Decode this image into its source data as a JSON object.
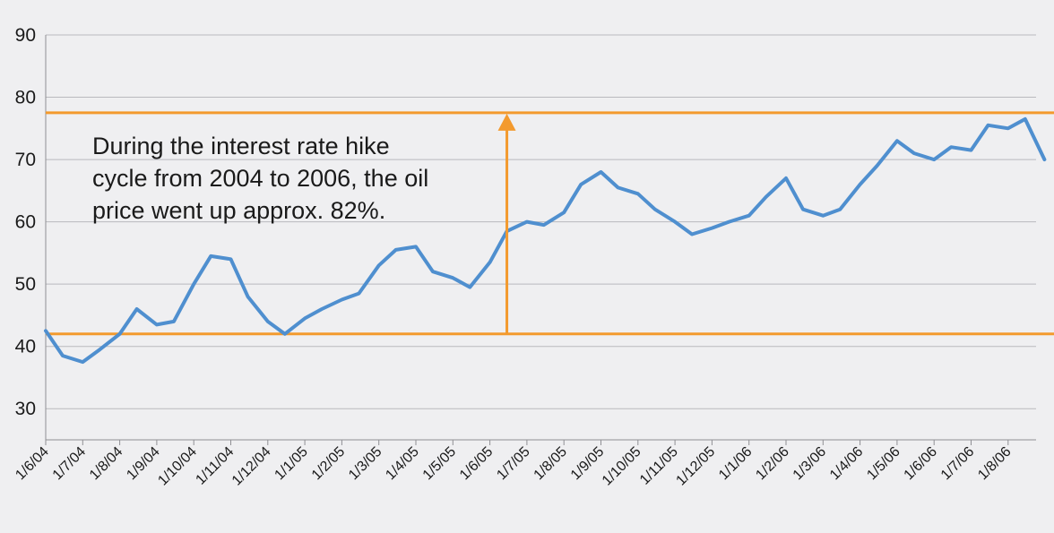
{
  "chart_data": {
    "type": "line",
    "title": "",
    "xlabel": "",
    "ylabel": "",
    "ylim": [
      25,
      90
    ],
    "y_ticks": [
      30,
      40,
      50,
      60,
      70,
      80,
      90
    ],
    "x_ticks": [
      "1/6/04",
      "1/7/04",
      "1/8/04",
      "1/9/04",
      "1/10/04",
      "1/11/04",
      "1/12/04",
      "1/1/05",
      "1/2/05",
      "1/3/05",
      "1/4/05",
      "1/5/05",
      "1/6/05",
      "1/7/05",
      "1/8/05",
      "1/9/05",
      "1/10/05",
      "1/11/05",
      "1/12/05",
      "1/1/06",
      "1/2/06",
      "1/3/06",
      "1/4/06",
      "1/5/06",
      "1/6/06",
      "1/7/06",
      "1/8/06"
    ],
    "grid": "horizontal",
    "line_color": "#4f8fcf",
    "accent_color": "#f39a2e",
    "series": [
      {
        "x": [
          "1/6/04",
          "15/6/04",
          "1/7/04",
          "15/7/04",
          "1/8/04",
          "15/8/04",
          "1/9/04",
          "15/9/04",
          "1/10/04",
          "15/10/04",
          "1/11/04",
          "15/11/04",
          "1/12/04",
          "15/12/04",
          "1/1/05",
          "15/1/05",
          "1/2/05",
          "15/2/05",
          "1/3/05",
          "15/3/05",
          "1/4/05",
          "15/4/05",
          "1/5/05",
          "15/5/05",
          "1/6/05",
          "15/6/05",
          "1/7/05",
          "15/7/05",
          "1/8/05",
          "15/8/05",
          "1/9/05",
          "15/9/05",
          "1/10/05",
          "15/10/05",
          "1/11/05",
          "15/11/05",
          "1/12/05",
          "15/12/05",
          "1/1/06",
          "15/1/06",
          "1/2/06",
          "15/2/06",
          "1/3/06",
          "15/3/06",
          "1/4/06",
          "15/4/06",
          "1/5/06",
          "15/5/06",
          "1/6/06",
          "15/6/06",
          "1/7/06",
          "15/7/06",
          "1/8/06",
          "15/8/06",
          "31/8/06"
        ],
        "values": [
          42.5,
          38.5,
          37.5,
          39.5,
          42.0,
          46.0,
          43.5,
          44.0,
          50.0,
          54.5,
          54.0,
          48.0,
          44.0,
          42.0,
          44.5,
          46.0,
          47.5,
          48.5,
          53.0,
          55.5,
          56.0,
          52.0,
          51.0,
          49.5,
          53.5,
          58.5,
          60.0,
          59.5,
          61.5,
          66.0,
          68.0,
          65.5,
          64.5,
          62.0,
          60.0,
          58.0,
          59.0,
          60.0,
          61.0,
          64.0,
          67.0,
          62.0,
          61.0,
          62.0,
          66.0,
          69.0,
          73.0,
          71.0,
          70.0,
          72.0,
          71.5,
          75.5,
          75.0,
          76.5,
          70.0
        ]
      }
    ],
    "reference_lines": [
      {
        "value": 42,
        "label": ""
      },
      {
        "value": 77.5,
        "label": ""
      }
    ],
    "arrow": {
      "x": "15/6/05",
      "from": 42,
      "to": 77.5
    },
    "annotation": {
      "lines": [
        "During the interest rate hike",
        "cycle from 2004 to 2006, the oil",
        "price went up approx. 82%."
      ]
    }
  }
}
